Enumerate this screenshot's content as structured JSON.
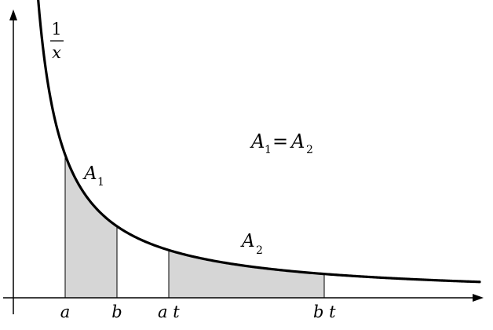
{
  "chart_data": {
    "type": "area",
    "function": "1/x",
    "curve_label_numerator": "1",
    "curve_label_denominator": "x",
    "equation": {
      "a1": "A",
      "sub1": "1",
      "eq": "=",
      "a2": "A",
      "sub2": "2"
    },
    "interval_1": {
      "from": 1,
      "to": 2,
      "region_label": "A",
      "region_sub": "1"
    },
    "interval_2": {
      "from": 3,
      "to": 6,
      "region_label": "A",
      "region_sub": "2"
    },
    "tick_labels": [
      {
        "id": "a",
        "x": 1,
        "text": "a"
      },
      {
        "id": "b",
        "x": 2,
        "text": "b"
      },
      {
        "id": "at",
        "x": 3,
        "text": "a t"
      },
      {
        "id": "bt",
        "x": 6,
        "text": "b t"
      }
    ],
    "xlim": [
      0.33,
      9.0
    ],
    "ylim": [
      0,
      3.4
    ],
    "grid": false,
    "colors": {
      "curve": "#000000",
      "shade": "#d6d6d6",
      "axis": "#000000"
    }
  }
}
